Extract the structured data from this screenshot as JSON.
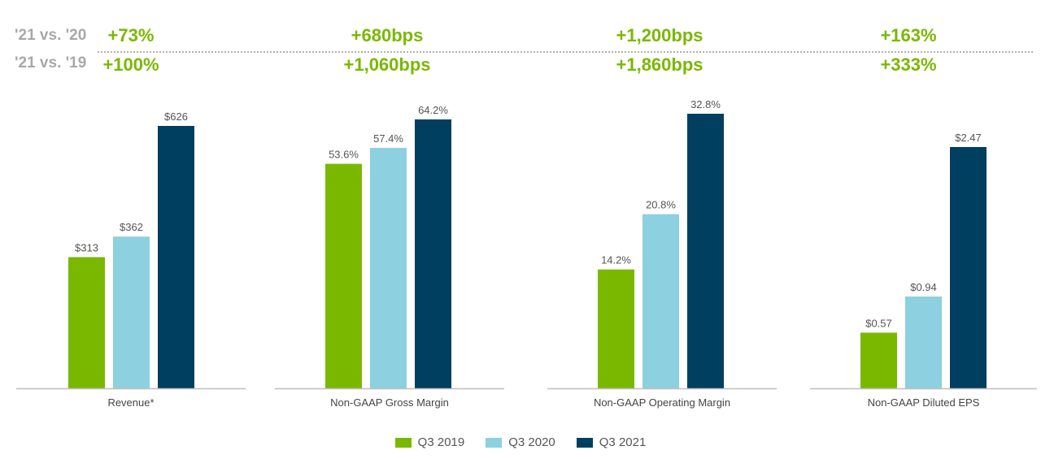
{
  "comparisons": [
    {
      "label": "'21 vs. '20",
      "values": [
        "+73%",
        "+680bps",
        "+1,200bps",
        "+163%"
      ]
    },
    {
      "label": "'21 vs. '19",
      "values": [
        "+100%",
        "+1,060bps",
        "+1,860bps",
        "+333%"
      ]
    }
  ],
  "colors": {
    "q3_2019": "#7ab800",
    "q3_2020": "#8dd0df",
    "q3_2021": "#003f5f",
    "comparison_text": "#7ab800",
    "label_text": "#a8a8a8"
  },
  "chart_data": [
    {
      "type": "bar",
      "xlabel": "Revenue*",
      "categories": [
        "Q3 2019",
        "Q3 2020",
        "Q3 2021"
      ],
      "values": [
        313,
        362,
        626
      ],
      "labels": [
        "$313",
        "$362",
        "$626"
      ]
    },
    {
      "type": "bar",
      "xlabel": "Non-GAAP Gross Margin",
      "categories": [
        "Q3 2019",
        "Q3 2020",
        "Q3 2021"
      ],
      "values": [
        53.6,
        57.4,
        64.2
      ],
      "labels": [
        "53.6%",
        "57.4%",
        "64.2%"
      ]
    },
    {
      "type": "bar",
      "xlabel": "Non-GAAP Operating Margin",
      "categories": [
        "Q3 2019",
        "Q3 2020",
        "Q3 2021"
      ],
      "values": [
        14.2,
        20.8,
        32.8
      ],
      "labels": [
        "14.2%",
        "20.8%",
        "32.8%"
      ]
    },
    {
      "type": "bar",
      "xlabel": "Non-GAAP Diluted EPS",
      "categories": [
        "Q3 2019",
        "Q3 2020",
        "Q3 2021"
      ],
      "values": [
        0.57,
        0.94,
        2.47
      ],
      "labels": [
        "$0.57",
        "$0.94",
        "$2.47"
      ]
    }
  ],
  "legend": [
    {
      "name": "Q3 2019",
      "color": "#7ab800"
    },
    {
      "name": "Q3 2020",
      "color": "#8dd0df"
    },
    {
      "name": "Q3 2021",
      "color": "#003f5f"
    }
  ]
}
